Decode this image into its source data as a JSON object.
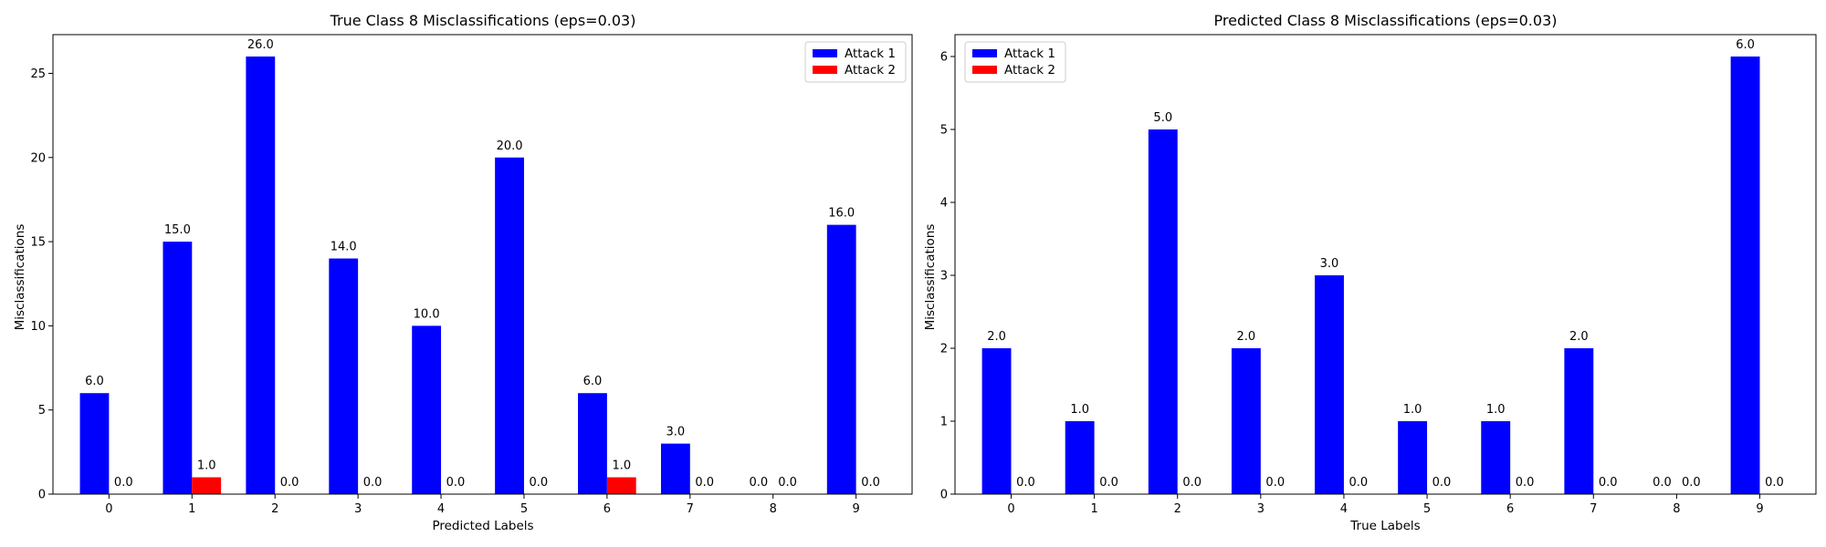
{
  "chart_data": [
    {
      "type": "bar",
      "title": "True Class 8 Misclassifications (eps=0.03)",
      "xlabel": "Predicted Labels",
      "ylabel": "Misclassifications",
      "categories": [
        "0",
        "1",
        "2",
        "3",
        "4",
        "5",
        "6",
        "7",
        "8",
        "9"
      ],
      "series": [
        {
          "name": "Attack 1",
          "color": "#0000ff",
          "values": [
            6,
            15,
            26,
            14,
            10,
            20,
            6,
            3,
            0,
            16
          ],
          "labels": [
            "6.0",
            "15.0",
            "26.0",
            "14.0",
            "10.0",
            "20.0",
            "6.0",
            "3.0",
            "0.0",
            "16.0"
          ]
        },
        {
          "name": "Attack 2",
          "color": "#ff0000",
          "values": [
            0,
            1,
            0,
            0,
            0,
            0,
            1,
            0,
            0,
            0
          ],
          "labels": [
            "0.0",
            "1.0",
            "0.0",
            "0.0",
            "0.0",
            "0.0",
            "1.0",
            "0.0",
            "0.0",
            "0.0"
          ]
        }
      ],
      "ylim": [
        0,
        27.3
      ],
      "yticks": [
        0,
        5,
        10,
        15,
        20,
        25
      ],
      "ytick_labels": [
        "0",
        "5",
        "10",
        "15",
        "20",
        "25"
      ],
      "legend": "top-right",
      "grid": false
    },
    {
      "type": "bar",
      "title": "Predicted Class 8 Misclassifications (eps=0.03)",
      "xlabel": "True Labels",
      "ylabel": "Misclassifications",
      "categories": [
        "0",
        "1",
        "2",
        "3",
        "4",
        "5",
        "6",
        "7",
        "8",
        "9"
      ],
      "series": [
        {
          "name": "Attack 1",
          "color": "#0000ff",
          "values": [
            2,
            1,
            5,
            2,
            3,
            1,
            1,
            2,
            0,
            6
          ],
          "labels": [
            "2.0",
            "1.0",
            "5.0",
            "2.0",
            "3.0",
            "1.0",
            "1.0",
            "2.0",
            "0.0",
            "6.0"
          ]
        },
        {
          "name": "Attack 2",
          "color": "#ff0000",
          "values": [
            0,
            0,
            0,
            0,
            0,
            0,
            0,
            0,
            0,
            0
          ],
          "labels": [
            "0.0",
            "0.0",
            "0.0",
            "0.0",
            "0.0",
            "0.0",
            "0.0",
            "0.0",
            "0.0",
            "0.0"
          ]
        }
      ],
      "ylim": [
        0,
        6.3
      ],
      "yticks": [
        0,
        1,
        2,
        3,
        4,
        5,
        6
      ],
      "ytick_labels": [
        "0",
        "1",
        "2",
        "3",
        "4",
        "5",
        "6"
      ],
      "legend": "top-left",
      "grid": false
    }
  ]
}
